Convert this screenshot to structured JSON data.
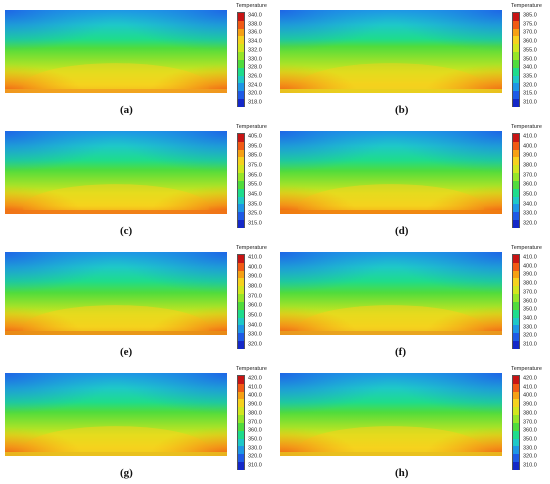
{
  "legend_title": "Temperature",
  "panels": [
    {
      "label": "(a)",
      "ticks": [
        "340.0",
        "338.0",
        "336.0",
        "334.0",
        "332.0",
        "330.0",
        "328.0",
        "326.0",
        "324.0",
        "320.0",
        "318.0"
      ],
      "hot_level": 0.55,
      "bottom_color": "#f0a020"
    },
    {
      "label": "(b)",
      "ticks": [
        "385.0",
        "375.0",
        "370.0",
        "360.0",
        "355.0",
        "350.0",
        "340.0",
        "335.0",
        "320.0",
        "315.0",
        "310.0"
      ],
      "hot_level": 0.45,
      "bottom_color": "#e8d020"
    },
    {
      "label": "(c)",
      "ticks": [
        "405.0",
        "395.0",
        "385.0",
        "375.0",
        "365.0",
        "355.0",
        "345.0",
        "335.0",
        "325.0",
        "315.0"
      ],
      "hot_level": 0.6,
      "bottom_color": "#f07818"
    },
    {
      "label": "(d)",
      "ticks": [
        "410.0",
        "400.0",
        "390.0",
        "380.0",
        "370.0",
        "360.0",
        "350.0",
        "340.0",
        "330.0",
        "320.0"
      ],
      "hot_level": 0.65,
      "bottom_color": "#f08010"
    },
    {
      "label": "(e)",
      "ticks": [
        "410.0",
        "400.0",
        "390.0",
        "380.0",
        "370.0",
        "360.0",
        "350.0",
        "340.0",
        "330.0",
        "320.0"
      ],
      "hot_level": 0.7,
      "bottom_color": "#e89018"
    },
    {
      "label": "(f)",
      "ticks": [
        "410.0",
        "400.0",
        "390.0",
        "380.0",
        "370.0",
        "360.0",
        "350.0",
        "340.0",
        "330.0",
        "320.0",
        "310.0"
      ],
      "hot_level": 0.7,
      "bottom_color": "#e8a020"
    },
    {
      "label": "(g)",
      "ticks": [
        "420.0",
        "410.0",
        "400.0",
        "390.0",
        "380.0",
        "370.0",
        "360.0",
        "350.0",
        "330.0",
        "320.0",
        "310.0"
      ],
      "hot_level": 0.6,
      "bottom_color": "#e8c020"
    },
    {
      "label": "(h)",
      "ticks": [
        "420.0",
        "410.0",
        "400.0",
        "390.0",
        "380.0",
        "370.0",
        "360.0",
        "350.0",
        "330.0",
        "320.0",
        "310.0"
      ],
      "hot_level": 0.62,
      "bottom_color": "#e8c020"
    }
  ],
  "scale_colors": [
    "#c81414",
    "#f05a14",
    "#f5a014",
    "#f5d21e",
    "#d2e61e",
    "#96e628",
    "#50dc3c",
    "#1edc8c",
    "#1ec8c8",
    "#1e96e6",
    "#1e5ae6",
    "#1428c8"
  ]
}
